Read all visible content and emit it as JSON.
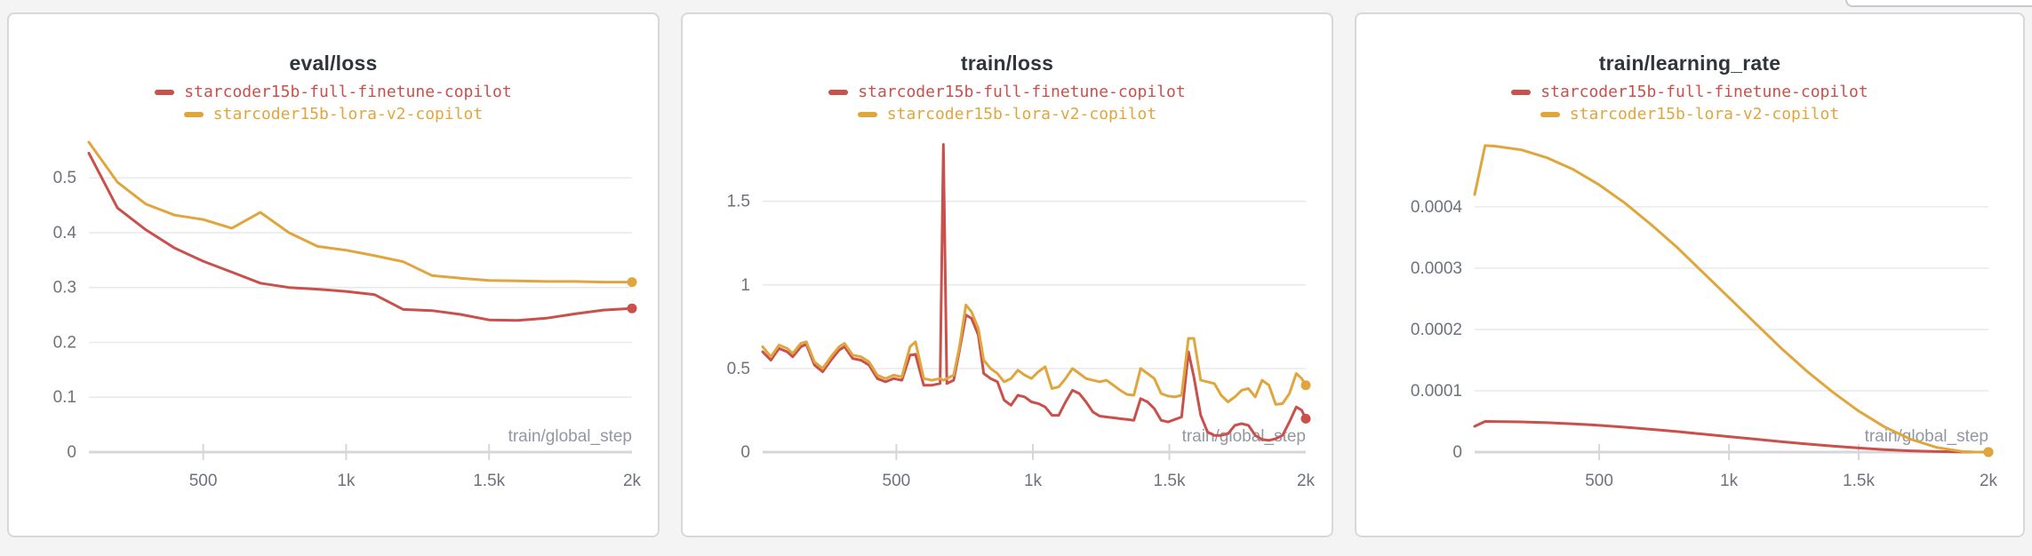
{
  "theme": {
    "page_background": "#f4f4f5",
    "panel_background": "#ffffff",
    "panel_border": "#d8d8dc",
    "grid_color": "#e9e9ed",
    "axis_color": "#d7d7db",
    "tick_text_color": "#6d727c",
    "axis_label_color": "#9298a2",
    "title_color": "#30343b",
    "run_red": "#c9504b",
    "run_gold": "#e0a63d"
  },
  "chart_data": [
    {
      "type": "line",
      "title": "eval/loss",
      "xlabel": "train/global_step",
      "ylabel": "",
      "grid": "horizontal",
      "legend_position": "top-center",
      "xlim": [
        100,
        2000
      ],
      "ylim": [
        0,
        0.57
      ],
      "x_ticks": [
        {
          "value": 500,
          "label": "500"
        },
        {
          "value": 1000,
          "label": "1k"
        },
        {
          "value": 1500,
          "label": "1.5k"
        },
        {
          "value": 2000,
          "label": "2k"
        }
      ],
      "y_ticks": [
        {
          "value": 0,
          "label": "0"
        },
        {
          "value": 0.1,
          "label": "0.1"
        },
        {
          "value": 0.2,
          "label": "0.2"
        },
        {
          "value": 0.3,
          "label": "0.3"
        },
        {
          "value": 0.4,
          "label": "0.4"
        },
        {
          "value": 0.5,
          "label": "0.5"
        }
      ],
      "series": [
        {
          "name": "starcoder15b-full-finetune-copilot",
          "color": "#c9504b",
          "end_dot": true,
          "x": [
            100,
            200,
            300,
            400,
            500,
            600,
            700,
            800,
            900,
            1000,
            1100,
            1200,
            1300,
            1400,
            1500,
            1600,
            1700,
            1800,
            1900,
            2000
          ],
          "y": [
            0.545,
            0.445,
            0.405,
            0.372,
            0.348,
            0.328,
            0.308,
            0.3,
            0.297,
            0.293,
            0.287,
            0.26,
            0.258,
            0.251,
            0.241,
            0.24,
            0.244,
            0.252,
            0.259,
            0.262
          ]
        },
        {
          "name": "starcoder15b-lora-v2-copilot",
          "color": "#e0a63d",
          "end_dot": true,
          "x": [
            100,
            200,
            300,
            400,
            500,
            600,
            700,
            800,
            900,
            1000,
            1100,
            1200,
            1300,
            1400,
            1500,
            1600,
            1700,
            1800,
            1900,
            2000
          ],
          "y": [
            0.565,
            0.492,
            0.452,
            0.432,
            0.424,
            0.408,
            0.437,
            0.4,
            0.375,
            0.368,
            0.358,
            0.347,
            0.322,
            0.317,
            0.313,
            0.312,
            0.311,
            0.311,
            0.31,
            0.31
          ]
        }
      ]
    },
    {
      "type": "line",
      "title": "train/loss",
      "xlabel": "train/global_step",
      "ylabel": "",
      "grid": "horizontal",
      "legend_position": "top-center",
      "xlim": [
        10,
        2000
      ],
      "ylim": [
        0,
        1.87
      ],
      "x_ticks": [
        {
          "value": 500,
          "label": "500"
        },
        {
          "value": 1000,
          "label": "1k"
        },
        {
          "value": 1500,
          "label": "1.5k"
        },
        {
          "value": 2000,
          "label": "2k"
        }
      ],
      "y_ticks": [
        {
          "value": 0,
          "label": "0"
        },
        {
          "value": 0.5,
          "label": "0.5"
        },
        {
          "value": 1,
          "label": "1"
        },
        {
          "value": 1.5,
          "label": "1.5"
        }
      ],
      "series": [
        {
          "name": "starcoder15b-full-finetune-copilot",
          "color": "#c9504b",
          "end_dot": true,
          "x": [
            10,
            40,
            70,
            100,
            120,
            150,
            170,
            200,
            230,
            260,
            290,
            310,
            340,
            370,
            400,
            430,
            460,
            490,
            520,
            550,
            570,
            600,
            630,
            660,
            672,
            685,
            710,
            730,
            755,
            775,
            800,
            820,
            845,
            870,
            895,
            920,
            945,
            970,
            995,
            1020,
            1045,
            1070,
            1095,
            1120,
            1145,
            1170,
            1195,
            1220,
            1245,
            1270,
            1295,
            1320,
            1345,
            1370,
            1395,
            1420,
            1445,
            1470,
            1495,
            1520,
            1545,
            1570,
            1590,
            1615,
            1640,
            1665,
            1690,
            1715,
            1740,
            1765,
            1790,
            1815,
            1840,
            1865,
            1890,
            1915,
            1940,
            1965,
            1985,
            2000
          ],
          "y": [
            0.6,
            0.55,
            0.62,
            0.6,
            0.57,
            0.63,
            0.645,
            0.52,
            0.48,
            0.55,
            0.61,
            0.63,
            0.56,
            0.55,
            0.52,
            0.44,
            0.42,
            0.44,
            0.43,
            0.58,
            0.585,
            0.4,
            0.4,
            0.41,
            1.84,
            0.41,
            0.43,
            0.6,
            0.82,
            0.8,
            0.7,
            0.47,
            0.44,
            0.42,
            0.31,
            0.28,
            0.34,
            0.33,
            0.3,
            0.29,
            0.27,
            0.22,
            0.22,
            0.3,
            0.37,
            0.35,
            0.3,
            0.24,
            0.215,
            0.21,
            0.205,
            0.2,
            0.195,
            0.19,
            0.32,
            0.3,
            0.26,
            0.19,
            0.18,
            0.195,
            0.21,
            0.6,
            0.45,
            0.22,
            0.12,
            0.1,
            0.1,
            0.11,
            0.16,
            0.17,
            0.16,
            0.1,
            0.075,
            0.07,
            0.08,
            0.1,
            0.18,
            0.27,
            0.25,
            0.2
          ]
        },
        {
          "name": "starcoder15b-lora-v2-copilot",
          "color": "#e0a63d",
          "end_dot": true,
          "x": [
            10,
            40,
            70,
            100,
            120,
            150,
            170,
            200,
            230,
            260,
            290,
            310,
            340,
            370,
            400,
            430,
            460,
            490,
            520,
            550,
            570,
            600,
            630,
            660,
            672,
            685,
            710,
            730,
            755,
            775,
            800,
            820,
            845,
            870,
            895,
            920,
            945,
            970,
            995,
            1020,
            1045,
            1070,
            1095,
            1120,
            1145,
            1170,
            1195,
            1220,
            1245,
            1270,
            1295,
            1320,
            1345,
            1370,
            1395,
            1420,
            1445,
            1470,
            1495,
            1520,
            1545,
            1570,
            1590,
            1615,
            1640,
            1665,
            1690,
            1715,
            1740,
            1765,
            1790,
            1815,
            1840,
            1865,
            1890,
            1915,
            1940,
            1965,
            1985,
            2000
          ],
          "y": [
            0.63,
            0.57,
            0.64,
            0.62,
            0.59,
            0.65,
            0.66,
            0.54,
            0.5,
            0.57,
            0.63,
            0.65,
            0.58,
            0.57,
            0.54,
            0.46,
            0.44,
            0.46,
            0.45,
            0.63,
            0.66,
            0.44,
            0.43,
            0.44,
            0.43,
            0.44,
            0.46,
            0.62,
            0.88,
            0.84,
            0.74,
            0.55,
            0.5,
            0.47,
            0.42,
            0.44,
            0.49,
            0.46,
            0.44,
            0.48,
            0.51,
            0.38,
            0.39,
            0.44,
            0.5,
            0.47,
            0.44,
            0.43,
            0.42,
            0.43,
            0.4,
            0.37,
            0.345,
            0.34,
            0.5,
            0.47,
            0.44,
            0.35,
            0.335,
            0.33,
            0.34,
            0.68,
            0.68,
            0.43,
            0.42,
            0.41,
            0.34,
            0.3,
            0.33,
            0.37,
            0.38,
            0.33,
            0.43,
            0.4,
            0.285,
            0.29,
            0.35,
            0.47,
            0.44,
            0.4
          ]
        }
      ]
    },
    {
      "type": "line",
      "title": "train/learning_rate",
      "xlabel": "train/global_step",
      "ylabel": "",
      "grid": "horizontal",
      "legend_position": "top-center",
      "xlim": [
        20,
        2000
      ],
      "ylim": [
        0,
        0.00051
      ],
      "x_ticks": [
        {
          "value": 500,
          "label": "500"
        },
        {
          "value": 1000,
          "label": "1k"
        },
        {
          "value": 1500,
          "label": "1.5k"
        },
        {
          "value": 2000,
          "label": "2k"
        }
      ],
      "y_ticks": [
        {
          "value": 0,
          "label": "0"
        },
        {
          "value": 0.0001,
          "label": "0.0001"
        },
        {
          "value": 0.0002,
          "label": "0.0002"
        },
        {
          "value": 0.0003,
          "label": "0.0003"
        },
        {
          "value": 0.0004,
          "label": "0.0004"
        }
      ],
      "series": [
        {
          "name": "starcoder15b-full-finetune-copilot",
          "color": "#c9504b",
          "end_dot": true,
          "x": [
            20,
            60,
            100,
            200,
            300,
            400,
            500,
            600,
            700,
            800,
            900,
            1000,
            1100,
            1200,
            1300,
            1400,
            1500,
            1600,
            1700,
            1800,
            1900,
            1950,
            2000
          ],
          "y": [
            4.2e-05,
            5e-05,
            4.99e-05,
            4.93e-05,
            4.8e-05,
            4.61e-05,
            4.36e-05,
            4.06e-05,
            3.71e-05,
            3.34e-05,
            2.93e-05,
            2.52e-05,
            2.11e-05,
            1.7e-05,
            1.32e-05,
            9.8e-06,
            6.7e-06,
            4.1e-06,
            2.1e-06,
            8e-07,
            1e-07,
            0,
            0
          ]
        },
        {
          "name": "starcoder15b-lora-v2-copilot",
          "color": "#e0a63d",
          "end_dot": true,
          "x": [
            20,
            60,
            100,
            200,
            300,
            400,
            500,
            600,
            700,
            800,
            900,
            1000,
            1100,
            1200,
            1300,
            1400,
            1500,
            1600,
            1700,
            1800,
            1900,
            1950,
            2000
          ],
          "y": [
            0.00042,
            0.0005,
            0.000499,
            0.000493,
            0.00048,
            0.000461,
            0.000436,
            0.000406,
            0.000371,
            0.000334,
            0.000293,
            0.000252,
            0.000211,
            0.00017,
            0.000132,
            9.8e-05,
            6.7e-05,
            4.1e-05,
            2.1e-05,
            7.7e-06,
            9e-07,
            0,
            0
          ]
        }
      ]
    }
  ]
}
